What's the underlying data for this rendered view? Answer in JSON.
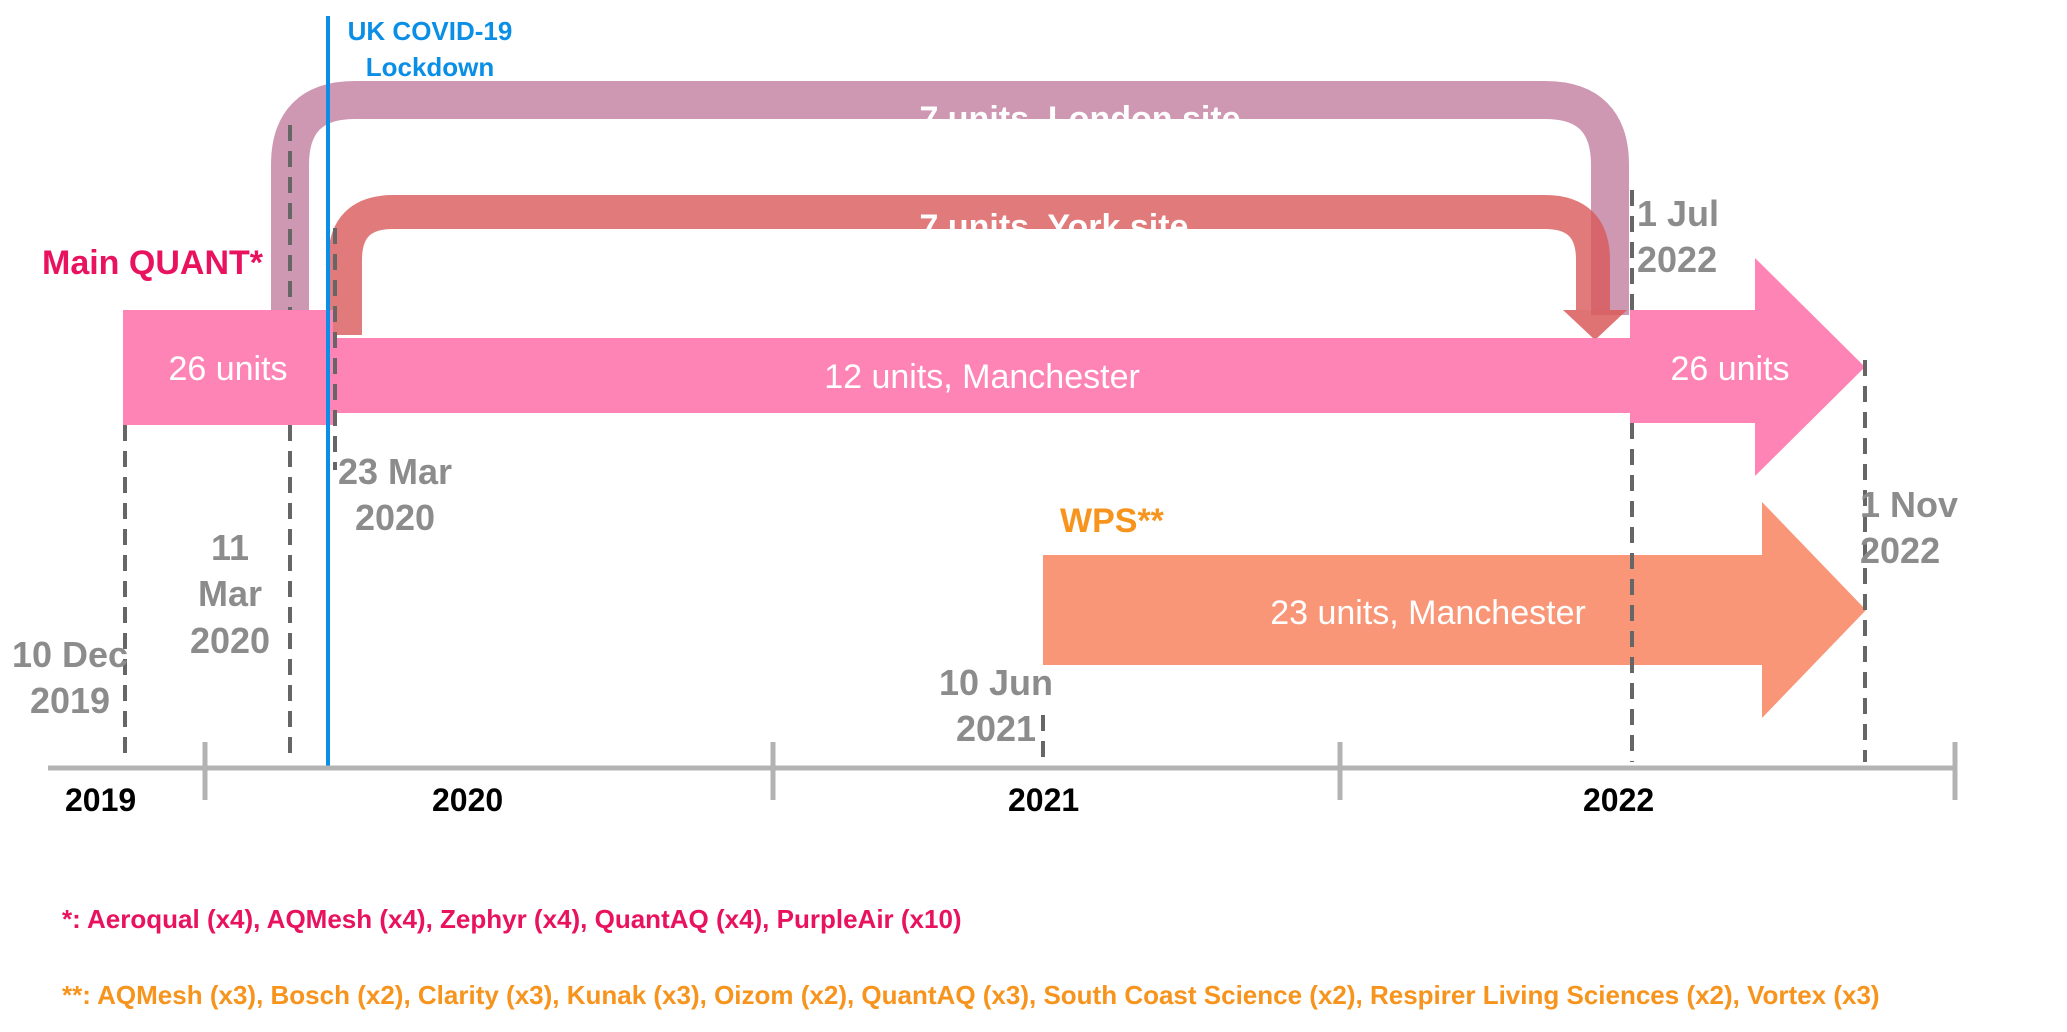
{
  "colors": {
    "quant": "#ff84b6",
    "quant_label": "#e8125f",
    "london": "#c27d9f",
    "york": "#d95a5a",
    "wps": "#fa9678",
    "wps_label": "#f7941d",
    "lockdown": "#0a8ee6",
    "dashes": "#666666",
    "date_text": "#8c8c8c",
    "axis": "#b3b3b3"
  },
  "lockdown": {
    "label_line1": "UK COVID-19",
    "label_line2": "Lockdown"
  },
  "groups": {
    "main": {
      "label": "Main QUANT*"
    },
    "wps": {
      "label": "WPS**"
    }
  },
  "bars": {
    "main_start": "26 units",
    "manchester": "12 units, Manchester",
    "main_end": "26 units",
    "london": "7 units, London site",
    "york": "7 units, York site",
    "wps": "23 units, Manchester"
  },
  "dates": {
    "d1": {
      "line1": "10 Dec",
      "line2": "2019"
    },
    "d2": {
      "line1": "11",
      "line2": "Mar",
      "line3": "2020"
    },
    "d3": {
      "line1": "23 Mar",
      "line2": "2020"
    },
    "d4": {
      "line1": "10 Jun",
      "line2": "2021"
    },
    "d5": {
      "line1": "1 Jul",
      "line2": "2022"
    },
    "d6": {
      "line1": "1 Nov",
      "line2": "2022"
    }
  },
  "axis": {
    "years": [
      "2019",
      "2020",
      "2021",
      "2022"
    ]
  },
  "footnotes": {
    "main": "*: Aeroqual (x4), AQMesh (x4), Zephyr (x4), QuantAQ (x4),  PurpleAir (x10)",
    "wps": "**: AQMesh (x3), Bosch (x2), Clarity (x3), Kunak (x3), Oizom (x2), QuantAQ (x3), South Coast Science (x2), Respirer Living Sciences (x2), Vortex (x3)"
  }
}
